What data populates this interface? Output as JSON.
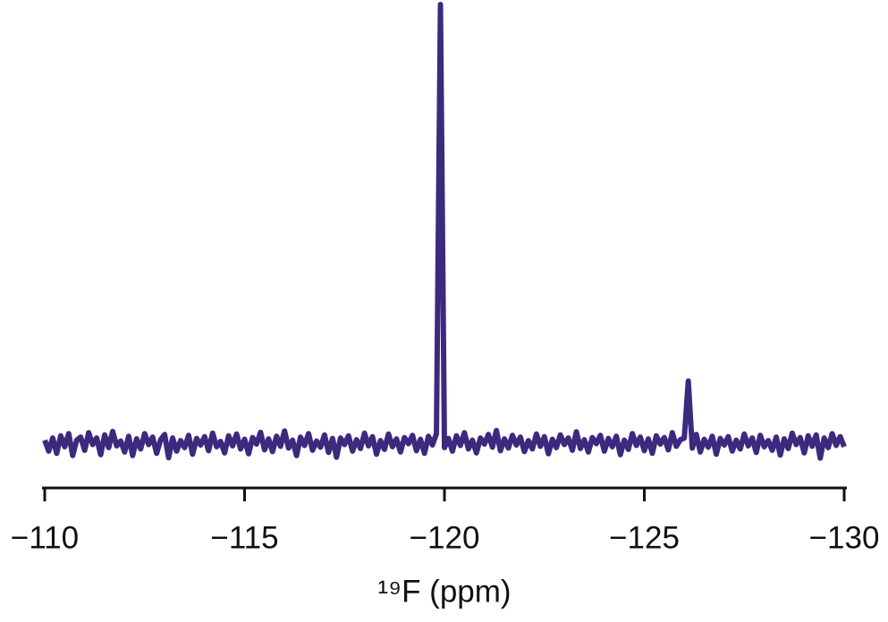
{
  "chart_data": {
    "type": "line",
    "xlabel": "¹⁹F (ppm)",
    "color": "#3b2a7e",
    "xlim": [
      -110,
      -130
    ],
    "ylim": [
      -1,
      10
    ],
    "xticks": [
      {
        "value": -110,
        "label": "−110"
      },
      {
        "value": -115,
        "label": "−115"
      },
      {
        "value": -120,
        "label": "−120"
      },
      {
        "value": -125,
        "label": "−125"
      },
      {
        "value": -130,
        "label": "−130"
      }
    ],
    "x": [
      -110,
      -110.1,
      -110.2,
      -110.3,
      -110.4,
      -110.5,
      -110.6,
      -110.7,
      -110.8,
      -110.9,
      -111,
      -111.1,
      -111.2,
      -111.3,
      -111.4,
      -111.5,
      -111.6,
      -111.7,
      -111.8,
      -111.9,
      -112,
      -112.1,
      -112.2,
      -112.3,
      -112.4,
      -112.5,
      -112.6,
      -112.7,
      -112.8,
      -112.9,
      -113,
      -113.1,
      -113.2,
      -113.3,
      -113.4,
      -113.5,
      -113.6,
      -113.7,
      -113.8,
      -113.9,
      -114,
      -114.1,
      -114.2,
      -114.3,
      -114.4,
      -114.5,
      -114.6,
      -114.7,
      -114.8,
      -114.9,
      -115,
      -115.1,
      -115.2,
      -115.3,
      -115.4,
      -115.5,
      -115.6,
      -115.7,
      -115.8,
      -115.9,
      -116,
      -116.1,
      -116.2,
      -116.3,
      -116.4,
      -116.5,
      -116.6,
      -116.7,
      -116.8,
      -116.9,
      -117,
      -117.1,
      -117.2,
      -117.3,
      -117.4,
      -117.5,
      -117.6,
      -117.7,
      -117.8,
      -117.9,
      -118,
      -118.1,
      -118.2,
      -118.3,
      -118.4,
      -118.5,
      -118.6,
      -118.7,
      -118.8,
      -118.9,
      -119,
      -119.1,
      -119.2,
      -119.3,
      -119.4,
      -119.5,
      -119.6,
      -119.7,
      -119.8,
      -119.9,
      -120,
      -120.1,
      -120.2,
      -120.3,
      -120.4,
      -120.5,
      -120.6,
      -120.7,
      -120.8,
      -120.9,
      -121,
      -121.1,
      -121.2,
      -121.3,
      -121.4,
      -121.5,
      -121.6,
      -121.7,
      -121.8,
      -121.9,
      -122,
      -122.1,
      -122.2,
      -122.3,
      -122.4,
      -122.5,
      -122.6,
      -122.7,
      -122.8,
      -122.9,
      -123,
      -123.1,
      -123.2,
      -123.3,
      -123.4,
      -123.5,
      -123.6,
      -123.7,
      -123.8,
      -123.9,
      -124,
      -124.1,
      -124.2,
      -124.3,
      -124.4,
      -124.5,
      -124.6,
      -124.7,
      -124.8,
      -124.9,
      -125,
      -125.1,
      -125.2,
      -125.3,
      -125.4,
      -125.5,
      -125.6,
      -125.7,
      -125.8,
      -125.9,
      -126,
      -126.1,
      -126.2,
      -126.3,
      -126.4,
      -126.5,
      -126.6,
      -126.7,
      -126.8,
      -126.9,
      -127,
      -127.1,
      -127.2,
      -127.3,
      -127.4,
      -127.5,
      -127.6,
      -127.7,
      -127.8,
      -127.9,
      -128,
      -128.1,
      -128.2,
      -128.3,
      -128.4,
      -128.5,
      -128.6,
      -128.7,
      -128.8,
      -128.9,
      -129,
      -129.1,
      -129.2,
      -129.3,
      -129.4,
      -129.5,
      -129.6,
      -129.7,
      -129.8,
      -129.9,
      -130
    ],
    "values": [
      0.05,
      -0.2,
      0.1,
      -0.25,
      0.15,
      -0.1,
      0.2,
      -0.3,
      0.05,
      0.12,
      -0.18,
      0.22,
      -0.05,
      0.1,
      -0.28,
      0.17,
      -0.12,
      0.25,
      -0.08,
      0.03,
      -0.22,
      0.14,
      -0.3,
      0.08,
      -0.15,
      0.2,
      -0.05,
      0.12,
      -0.25,
      0.06,
      0.18,
      -0.35,
      0.1,
      -0.2,
      0.04,
      -0.12,
      0.16,
      -0.27,
      0.09,
      -0.06,
      0.13,
      -0.19,
      0.21,
      -0.1,
      0.02,
      -0.24,
      0.15,
      -0.08,
      0.19,
      -0.15,
      0.07,
      -0.26,
      0.11,
      -0.04,
      0.23,
      -0.17,
      0.08,
      -0.21,
      0.14,
      -0.09,
      0.26,
      -0.13,
      0.05,
      -0.3,
      0.12,
      -0.07,
      0.2,
      -0.18,
      0.03,
      -0.11,
      0.17,
      -0.23,
      0.09,
      -0.34,
      0.1,
      -0.05,
      0.15,
      -0.2,
      0.06,
      -0.14,
      0.21,
      -0.08,
      0.13,
      -0.27,
      0.04,
      -0.16,
      0.19,
      -0.1,
      0.08,
      -0.22,
      0.11,
      -0.03,
      0.16,
      -0.19,
      0.07,
      -0.25,
      0.14,
      -0.06,
      0.2,
      10,
      -0.12,
      0.09,
      -0.2,
      0.15,
      -0.07,
      0.22,
      -0.15,
      0.05,
      -0.24,
      0.1,
      -0.04,
      0.18,
      -0.11,
      0.27,
      -0.19,
      0.08,
      -0.13,
      0.16,
      -0.06,
      0.12,
      -0.21,
      0.04,
      -0.15,
      0.19,
      -0.09,
      0.13,
      -0.26,
      0.07,
      -0.12,
      0.17,
      -0.05,
      0.1,
      -0.18,
      0.24,
      -0.14,
      0.06,
      -0.22,
      0.11,
      -0.03,
      0.16,
      -0.2,
      0.09,
      -0.1,
      0.14,
      -0.28,
      0.05,
      -0.16,
      0.2,
      -0.07,
      0.12,
      -0.19,
      0.08,
      -0.25,
      0.15,
      -0.04,
      0.11,
      -0.17,
      0.22,
      -0.09,
      0.06,
      0.1,
      1.4,
      -0.13,
      0.18,
      -0.22,
      0.07,
      -0.11,
      0.14,
      -0.27,
      0.09,
      -0.06,
      0.13,
      -0.2,
      0.05,
      -0.15,
      0.19,
      -0.08,
      0.1,
      -0.23,
      0.16,
      -0.1,
      0.04,
      -0.18,
      0.12,
      -0.29,
      0.08,
      -0.14,
      0.21,
      -0.05,
      0.11,
      -0.24,
      0.15,
      -0.09,
      0.17,
      -0.36,
      0.1,
      -0.12,
      0.2,
      -0.07,
      0.13,
      -0.1
    ]
  }
}
